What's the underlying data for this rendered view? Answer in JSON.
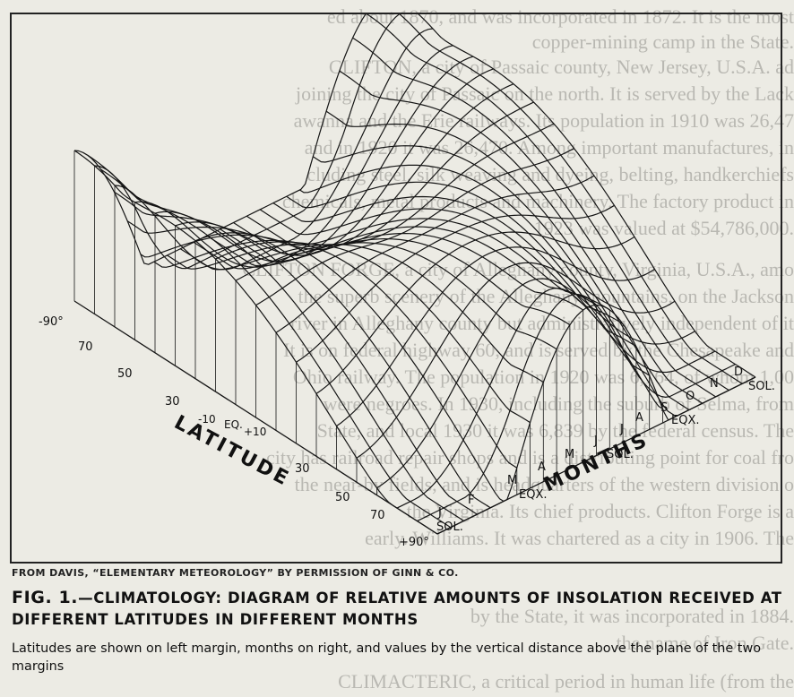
{
  "background_text": [
    "ed about 1870, and was incorporated in 1872. It is the most",
    "copper-mining camp in the State.",
    "CLIFTON, a city of Passaic county, New Jersey, U.S.A. ad",
    "joining the city of Passaic on the north. It is served by the Lack",
    "awanna and the Erie railways. Its population in 1910 was 26,47",
    "and in 1920 it was 26,470. Among important manufactures, in",
    "cluding steel, silk weaving and dyeing, belting, handkerchiefs",
    "chemicals, metal products and machinery. The factory product in",
    "1923 was valued at $54,786,000.",
    "CLIFTON FORGE, a city of Alleghany county, Virginia, U.S.A., amo",
    "the superb scenery of the Alleghany mountains, on the Jackson",
    "river in Alleghany county but administratively independent of it",
    "It is on federal highway 60, and is served by the Chesapeake and",
    "Ohio railway. The population in 1920 was 6,164, of whom 1,00",
    "were negroes. In 1930, including the suburb of Selma, from",
    "State, and local 1930 it was 6,839 by the federal census. The",
    "city has railroad repair shops and is a distributing point for coal fro",
    "the near-by fields, and is headquarters of the western division o",
    "the Virginia. Its chief products. Clifton Forge is a",
    "early. Williams. It was chartered as a city in 1906. The",
    "by the State,  it was incorporated in 1884.",
    "the name of Iron Gate.",
    "CLIMACTERIC, a critical period in human life (from the"
  ],
  "diagram": {
    "latitude_ticks_left": [
      "-90°",
      "70",
      "50",
      "30",
      "-10",
      "EQ.",
      "+10",
      "30",
      "50",
      "70",
      "+90°"
    ],
    "axis_label_left": "LATITUDE",
    "month_ticks_right": [
      "J",
      "F",
      "M",
      "A",
      "M",
      "J",
      "J",
      "A",
      "S",
      "O",
      "N",
      "D"
    ],
    "solstice_label": "SOL.",
    "equinox_label": "EQX.",
    "axis_label_right": "MONTHS"
  },
  "credit_line": "FROM DAVIS, “ELEMENTARY METEOROLOGY”   BY PERMISSION OF GINN & CO.",
  "caption": {
    "fig_label": "FIG. 1.",
    "title": "—CLIMATOLOGY: DIAGRAM OF RELATIVE AMOUNTS OF INSOLATION RECEIVED AT DIFFERENT LATITUDES IN DIFFERENT MONTHS",
    "subtitle": "Latitudes are shown on left margin, months on right, and values by the vertical distance above the plane of the two margins"
  }
}
